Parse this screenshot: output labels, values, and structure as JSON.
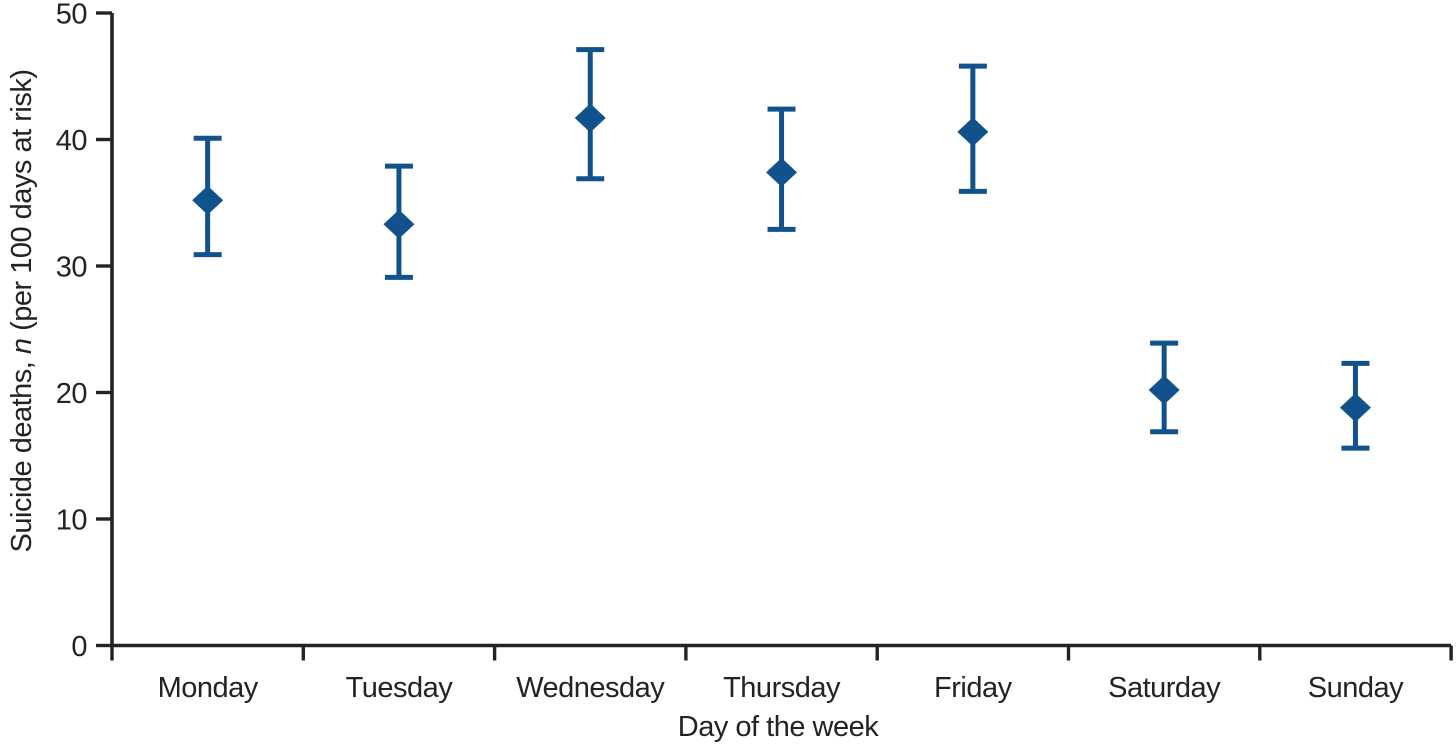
{
  "figure": {
    "background_color": "#ffffff",
    "marker_color": "#12528C",
    "axis_color": "#262224",
    "text_color": "#262224"
  },
  "axes": {
    "x_title": "Day of the week",
    "y_title_prefix": "Suicide deaths, ",
    "y_title_italic": "n",
    "y_title_suffix": " (per 100 days at risk)",
    "y_ticks": [
      "0",
      "10",
      "20",
      "30",
      "40",
      "50"
    ],
    "y_tick_values": [
      0,
      10,
      20,
      30,
      40,
      50
    ]
  },
  "chart_data": {
    "type": "scatter",
    "subtype": "point_estimates_with_95ci_error_bars",
    "title": "",
    "xlabel": "Day of the week",
    "ylabel": "Suicide deaths, n (per 100 days at risk)",
    "categories": [
      "Monday",
      "Tuesday",
      "Wednesday",
      "Thursday",
      "Friday",
      "Saturday",
      "Sunday"
    ],
    "series": [
      {
        "name": "Suicide deaths, n (per 100 days at risk)",
        "values": [
          35.2,
          33.3,
          41.7,
          37.4,
          40.6,
          20.2,
          18.8
        ],
        "ci_lower": [
          30.9,
          29.1,
          36.9,
          32.9,
          35.9,
          16.9,
          15.6
        ],
        "ci_upper": [
          40.1,
          37.9,
          47.1,
          42.4,
          45.8,
          23.9,
          22.3
        ]
      }
    ],
    "ylim": [
      0,
      50
    ],
    "y_tick_interval": 10,
    "grid": false,
    "legend": false,
    "marker": "diamond",
    "marker_color": "#12528C",
    "error_bar_caps": true
  }
}
